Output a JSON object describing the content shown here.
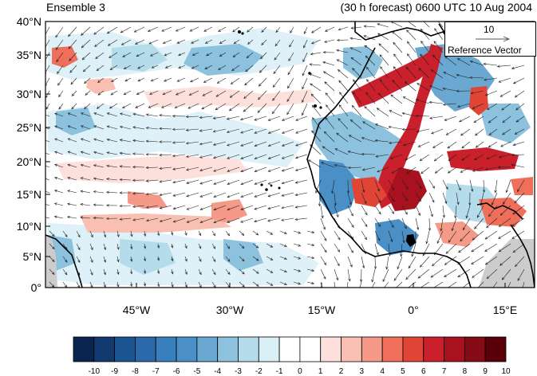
{
  "title_left": "Ensemble 3",
  "title_right": "(30 h forecast) 0600 UTC 10 Aug 2004",
  "lat_labels": [
    "40°N",
    "35°N",
    "30°N",
    "25°N",
    "20°N",
    "15°N",
    "10°N",
    "5°N",
    "0°"
  ],
  "lon_labels": [
    "45°W",
    "30°W",
    "15°W",
    "0°",
    "15°E"
  ],
  "reference_vector": {
    "value": "10",
    "label": "Reference Vector"
  },
  "colorbar": {
    "labels": [
      "-10",
      "-9",
      "-8",
      "-7",
      "-6",
      "-5",
      "-4",
      "-3",
      "-2",
      "-1",
      "0",
      "1",
      "2",
      "3",
      "4",
      "5",
      "6",
      "7",
      "8",
      "9",
      "10"
    ],
    "colors": [
      "#0a2550",
      "#123a70",
      "#1b5592",
      "#2a6aab",
      "#3a7fbd",
      "#4a90c6",
      "#6aa8d2",
      "#8cc2dd",
      "#b4dcea",
      "#daf0f7",
      "#ffffff",
      "#ffffff",
      "#fde0dc",
      "#f9bfb3",
      "#f59a88",
      "#ef6f5a",
      "#e14536",
      "#c9202b",
      "#a8121e",
      "#850b16",
      "#5a0008"
    ]
  },
  "map": {
    "lon_range": [
      -59,
      19
    ],
    "lat_range": [
      0,
      40
    ]
  }
}
